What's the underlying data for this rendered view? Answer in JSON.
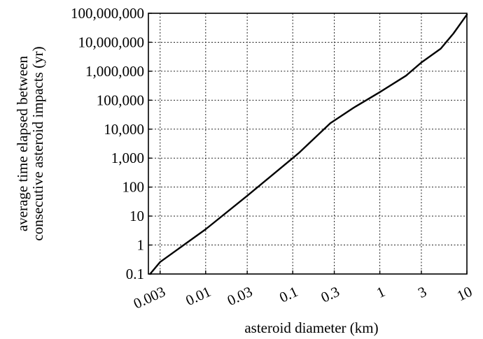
{
  "chart_data": {
    "type": "line",
    "xscale": "log",
    "yscale": "log",
    "xlabel": "asteroid diameter (km)",
    "ylabel": [
      "average time elapsed between",
      "consecutive asteroid impacts (yr)"
    ],
    "xlim": [
      0.0022,
      10
    ],
    "ylim": [
      0.1,
      100000000
    ],
    "grid": true,
    "x_ticks": [
      {
        "value": 0.003,
        "label": "0.003"
      },
      {
        "value": 0.01,
        "label": "0.01"
      },
      {
        "value": 0.03,
        "label": "0.03"
      },
      {
        "value": 0.1,
        "label": "0.1"
      },
      {
        "value": 0.3,
        "label": "0.3"
      },
      {
        "value": 1,
        "label": "1"
      },
      {
        "value": 3,
        "label": "3"
      },
      {
        "value": 10,
        "label": "10"
      }
    ],
    "y_ticks": [
      {
        "value": 0.1,
        "label": "0.1"
      },
      {
        "value": 1,
        "label": "1"
      },
      {
        "value": 10,
        "label": "10"
      },
      {
        "value": 100,
        "label": "100"
      },
      {
        "value": 1000,
        "label": "1,000"
      },
      {
        "value": 10000,
        "label": "10,000"
      },
      {
        "value": 100000,
        "label": "100,000"
      },
      {
        "value": 1000000,
        "label": "1,000,000"
      },
      {
        "value": 10000000,
        "label": "10,000,000"
      },
      {
        "value": 100000000,
        "label": "100,000,000"
      }
    ],
    "series": [
      {
        "x": [
          0.0023,
          0.003,
          0.01,
          0.03,
          0.1,
          0.12,
          0.27,
          0.5,
          1,
          2,
          3,
          5,
          7,
          10
        ],
        "y": [
          0.1,
          0.26,
          3.5,
          50,
          1000,
          1600,
          16000,
          55000,
          190000,
          700000,
          2000000,
          6000000,
          20000000,
          90000000
        ]
      }
    ]
  }
}
